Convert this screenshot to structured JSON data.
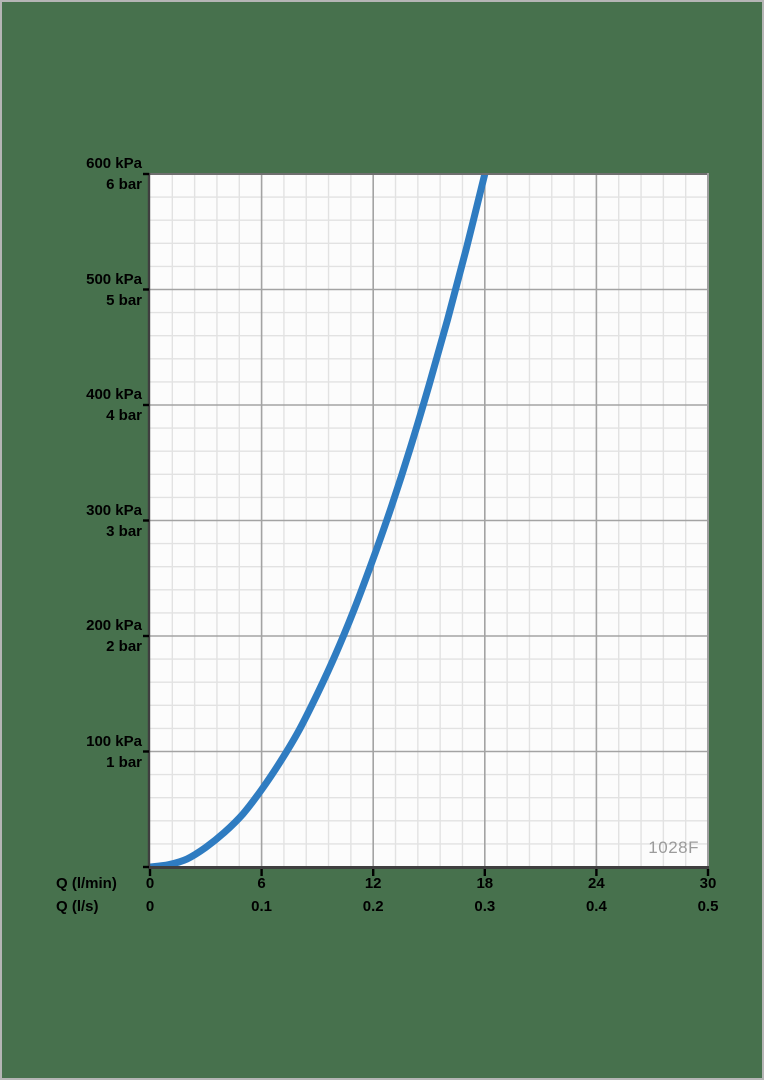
{
  "chart_data": {
    "type": "line",
    "title": "",
    "watermark": "1028F",
    "x_axis": {
      "rows": [
        {
          "label": "Q (l/min)",
          "tick_labels": [
            "0",
            "6",
            "12",
            "18",
            "24",
            "30"
          ]
        },
        {
          "label": "Q (l/s)",
          "tick_labels": [
            "0",
            "0.1",
            "0.2",
            "0.3",
            "0.4",
            "0.5"
          ]
        }
      ],
      "range_lmin": [
        0,
        30
      ],
      "majors_lmin": [
        0,
        6,
        12,
        18,
        24,
        30
      ],
      "minor_divisions_per_major": 5,
      "grid": true
    },
    "y_axis": {
      "unit_primary": "kPa",
      "unit_secondary": "bar",
      "range_kpa": [
        0,
        600
      ],
      "majors_kpa": [
        0,
        100,
        200,
        300,
        400,
        500,
        600
      ],
      "minor_divisions_per_major": 5,
      "tick_labels": [
        {
          "value": 600,
          "kpa": "600 kPa",
          "bar": "6 bar"
        },
        {
          "value": 500,
          "kpa": "500 kPa",
          "bar": "5 bar"
        },
        {
          "value": 400,
          "kpa": "400 kPa",
          "bar": "4 bar"
        },
        {
          "value": 300,
          "kpa": "300 kPa",
          "bar": "3 bar"
        },
        {
          "value": 200,
          "kpa": "200 kPa",
          "bar": "2 bar"
        },
        {
          "value": 100,
          "kpa": "100 kPa",
          "bar": "1 bar"
        }
      ]
    },
    "series": [
      {
        "name": "pressure-drop-curve",
        "color": "#2F7CC1",
        "points_lmin_kpa": [
          [
            0,
            0
          ],
          [
            1,
            2
          ],
          [
            2,
            7
          ],
          [
            3,
            17
          ],
          [
            4,
            30
          ],
          [
            5,
            46
          ],
          [
            6,
            67
          ],
          [
            7,
            91
          ],
          [
            8,
            118
          ],
          [
            9,
            150
          ],
          [
            10,
            185
          ],
          [
            11,
            224
          ],
          [
            12,
            267
          ],
          [
            13,
            313
          ],
          [
            14,
            363
          ],
          [
            15,
            417
          ],
          [
            16,
            474
          ],
          [
            17,
            535
          ],
          [
            18,
            600
          ]
        ]
      }
    ],
    "colors": {
      "background": "#47714D",
      "page_border": "#b5b5b5",
      "plot_background": "#fcfcfc",
      "grid_minor": "#e2e2e2",
      "grid_major": "#a3a3a3",
      "axis_dark": "#3f3f3f",
      "axis_top": "#6f6f6f",
      "axis_right": "#9f9f9f",
      "tick_color": "#000000",
      "label_color": "#000000",
      "watermark_color": "#9b9b9b"
    }
  }
}
